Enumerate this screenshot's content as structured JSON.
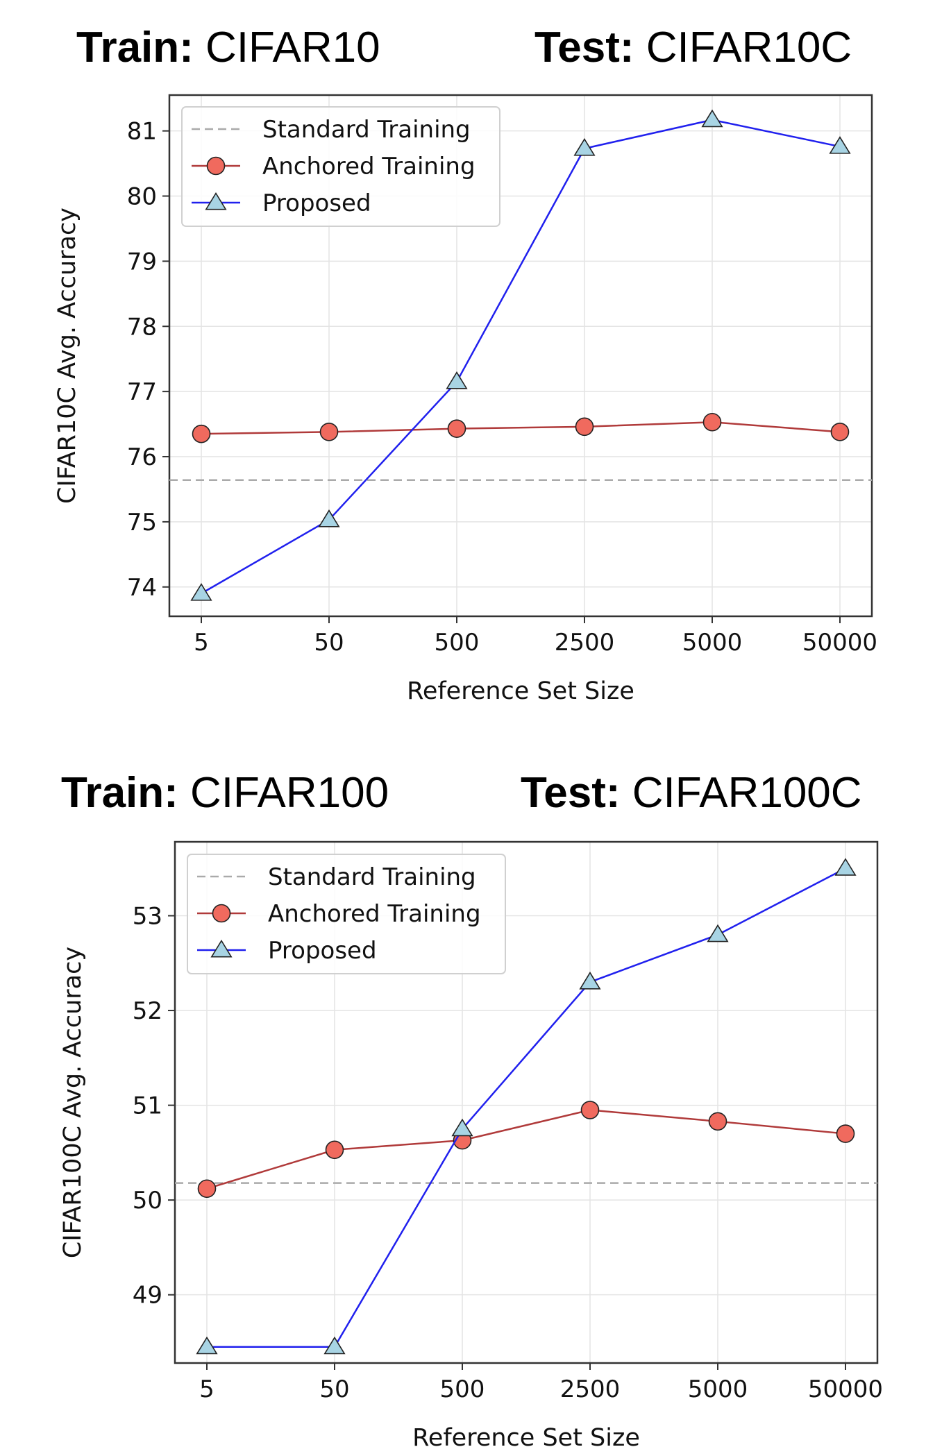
{
  "panels": [
    {
      "train_label": "Train:",
      "train_value": "CIFAR10",
      "test_label": "Test:",
      "test_value": "CIFAR10C"
    },
    {
      "train_label": "Train:",
      "train_value": "CIFAR100",
      "test_label": "Test:",
      "test_value": "CIFAR100C"
    }
  ],
  "chart_data": [
    {
      "type": "line",
      "categories": [
        "5",
        "50",
        "500",
        "2500",
        "5000",
        "50000"
      ],
      "xlabel": "Reference Set Size",
      "ylabel": "CIFAR10C Avg. Accuracy",
      "ylim": [
        73.55,
        81.55
      ],
      "yticks": [
        74,
        75,
        76,
        77,
        78,
        79,
        80,
        81
      ],
      "grid": true,
      "legend_position": "top-left",
      "series": [
        {
          "name": "Standard Training",
          "style": "dashed",
          "color": "#aaaaaa",
          "values": [
            75.64,
            75.64,
            75.64,
            75.64,
            75.64,
            75.64
          ]
        },
        {
          "name": "Anchored Training",
          "style": "line-circle",
          "color": "#b03a3a",
          "marker_fill": "#f06a5e",
          "values": [
            76.35,
            76.38,
            76.43,
            76.46,
            76.53,
            76.38
          ]
        },
        {
          "name": "Proposed",
          "style": "line-triangle",
          "color": "#2020ee",
          "marker_fill": "#a8d4e4",
          "values": [
            73.9,
            75.03,
            77.15,
            80.73,
            81.17,
            80.76
          ]
        }
      ]
    },
    {
      "type": "line",
      "categories": [
        "5",
        "50",
        "500",
        "2500",
        "5000",
        "50000"
      ],
      "xlabel": "Reference Set Size",
      "ylabel": "CIFAR100C Avg. Accuracy",
      "ylim": [
        48.28,
        53.78
      ],
      "yticks": [
        49,
        50,
        51,
        52,
        53
      ],
      "grid": true,
      "legend_position": "top-left",
      "series": [
        {
          "name": "Standard Training",
          "style": "dashed",
          "color": "#aaaaaa",
          "values": [
            50.18,
            50.18,
            50.18,
            50.18,
            50.18,
            50.18
          ]
        },
        {
          "name": "Anchored Training",
          "style": "line-circle",
          "color": "#b03a3a",
          "marker_fill": "#f06a5e",
          "values": [
            50.12,
            50.53,
            50.63,
            50.95,
            50.83,
            50.7
          ]
        },
        {
          "name": "Proposed",
          "style": "line-triangle",
          "color": "#2020ee",
          "marker_fill": "#a8d4e4",
          "values": [
            48.45,
            48.45,
            50.75,
            52.3,
            52.8,
            53.5
          ]
        }
      ]
    }
  ]
}
